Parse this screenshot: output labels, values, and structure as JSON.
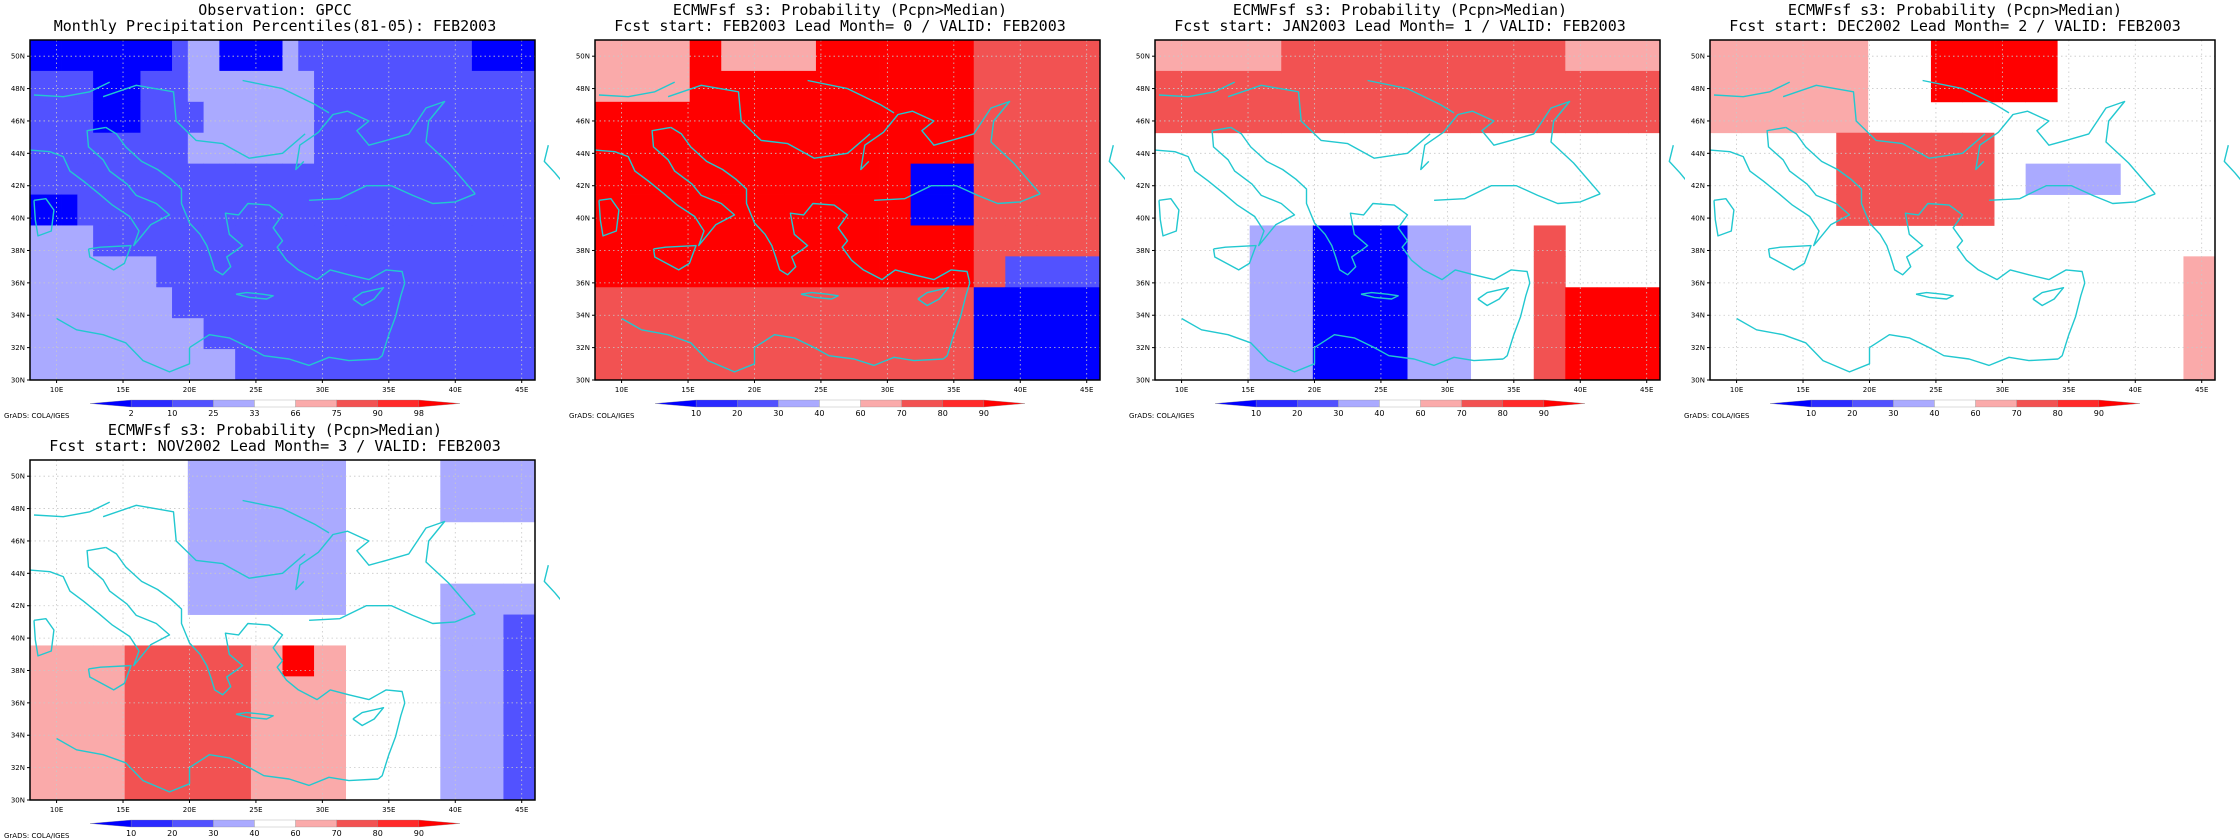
{
  "palette": {
    "-3": "#0000ff",
    "-2": "#5252ff",
    "-1": "#aaaaff",
    "0": "#ffffff",
    "1": "#faaaaa",
    "2": "#f25252",
    "3": "#ff0000",
    "coast": "#22c8d0",
    "grid": "#c8c8c8"
  },
  "x_ticks": [
    "10E",
    "15E",
    "20E",
    "25E",
    "30E",
    "35E",
    "40E",
    "45E"
  ],
  "y_ticks": [
    "50N",
    "48N",
    "46N",
    "44N",
    "42N",
    "40N",
    "38N",
    "36N",
    "34N",
    "32N",
    "30N"
  ],
  "footer": "GrADS: COLA/IGES",
  "panels": [
    {
      "title1": "Observation: GPCC",
      "title2": "Monthly Precipitation Percentiles(81-05): FEB2003",
      "colorbar_labels": [
        "2",
        "10",
        "25",
        "33",
        "66",
        "75",
        "90",
        "98"
      ],
      "grid": [
        "-3-3-3-3-3-3-3-3-3-2-1-1-3-3-3-3-1-2-2-2-2-2-2-2-2-2-2-2-3-3-3-3",
        "-2-2-2-2-3-3-3-2-2-2-1-1-1-1-1-1-1-1-2-2-2-2-2-2-2-2-2-2-2-2-2-2",
        "-2-2-2-2-3-3-3-2-2-2-2-1-1-1-1-1-1-1-2-2-2-2-2-2-2-2-2-2-2-2-2-2",
        "-2-2-2-2-2-2-2-2-2-2-1-1-1-1-1-1-1-1-2-2-2-2-2-2-2-2-2-2-2-2-2-2",
        "-2-2-2-2-2-2-2-2-2-2-2-2-2-2-2-2-2-2-2-2-2-2-2-2-2-2-2-2-2-2-2-2",
        "-3-3-3-2-2-2-2-2-2-2-2-2-2-2-2-2-2-2-2-2-2-2-2-2-2-2-2-2-2-2-2-2",
        "-1-1-1-1-2-2-2-2-2-2-2-2-2-2-2-2-2-2-2-2-2-2-2-2-2-2-2-2-2-2-2-2",
        "-1-1-1-1-1-1-1-1-2-2-2-2-2-2-2-2-2-2-2-2-2-2-2-2-2-2-2-2-2-2-2-2",
        "-1-1-1-1-1-1-1-1-1-2-2-2-2-2-2-2-2-2-2-2-2-2-2-2-2-2-2-2-2-2-2-2",
        "-1-1-1-1-1-1-1-1-1-1-1-2-2-2-2-2-2-2-2-2-2-2-2-2-2-2-2-2-2-2-2-2",
        "-1-1-1-1-1-1-1-1-1-1-1-1-1-2-2-2-2-2-2-2-2-2-2-2-2-2-2-2-2-2-2-2"
      ]
    },
    {
      "title1": "ECMWFsf s3: Probability (Pcpn>Median)",
      "title2": "Fcst start: FEB2003  Lead Month= 0 / VALID: FEB2003",
      "colorbar_labels": [
        "10",
        "20",
        "30",
        "40",
        "60",
        "70",
        "80",
        "90"
      ],
      "grid": []
    },
    {
      "title1": "ECMWFsf s3: Probability (Pcpn>Median)",
      "title2": "Fcst start: JAN2003  Lead Month= 1 / VALID: FEB2003",
      "colorbar_labels": [
        "10",
        "20",
        "30",
        "40",
        "60",
        "70",
        "80",
        "90"
      ],
      "grid": []
    },
    {
      "title1": "ECMWFsf s3: Probability (Pcpn>Median)",
      "title2": "Fcst start: DEC2002  Lead Month= 2 / VALID: FEB2003",
      "colorbar_labels": [
        "10",
        "20",
        "30",
        "40",
        "60",
        "70",
        "80",
        "90"
      ],
      "grid": []
    },
    {
      "title1": "ECMWFsf s3: Probability (Pcpn>Median)",
      "title2": "Fcst start: NOV2002  Lead Month= 3 / VALID: FEB2003",
      "colorbar_labels": [
        "10",
        "20",
        "30",
        "40",
        "60",
        "70",
        "80",
        "90"
      ],
      "grid": []
    }
  ]
}
